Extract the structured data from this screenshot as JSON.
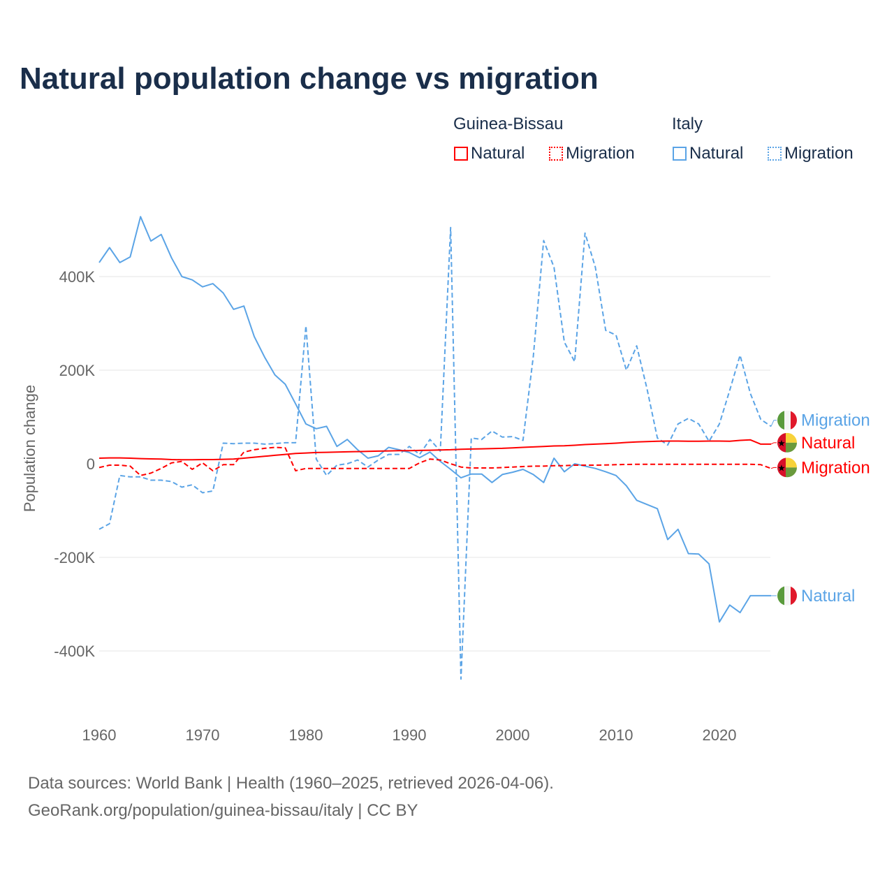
{
  "title": "Natural population change vs migration",
  "legend": {
    "groups": [
      {
        "name": "Guinea-Bissau",
        "items": [
          "Natural",
          "Migration"
        ]
      },
      {
        "name": "Italy",
        "items": [
          "Natural",
          "Migration"
        ]
      }
    ]
  },
  "colors": {
    "guinea_bissau": "#ff0000",
    "italy": "#5ba4e6"
  },
  "footer": {
    "line1": "Data sources: World Bank | Health (1960–2025, retrieved 2026-04-06).",
    "line2": "GeoRank.org/population/guinea-bissau/italy | CC BY"
  },
  "chart_data": {
    "type": "line",
    "title": "Natural population change vs migration",
    "xlabel": "",
    "ylabel": "Population change",
    "xlim": [
      1960,
      2025
    ],
    "ylim": [
      -460000,
      530000
    ],
    "x_ticks": [
      1960,
      1970,
      1980,
      1990,
      2000,
      2010,
      2020
    ],
    "y_ticks": [
      {
        "v": 400000,
        "label": "400K"
      },
      {
        "v": 200000,
        "label": "200K"
      },
      {
        "v": 0,
        "label": "0"
      },
      {
        "v": -200000,
        "label": "-200K"
      },
      {
        "v": -400000,
        "label": "-400K"
      }
    ],
    "grid": true,
    "x": [
      1960,
      1961,
      1962,
      1963,
      1964,
      1965,
      1966,
      1967,
      1968,
      1969,
      1970,
      1971,
      1972,
      1973,
      1974,
      1975,
      1976,
      1977,
      1978,
      1979,
      1980,
      1981,
      1982,
      1983,
      1984,
      1985,
      1986,
      1987,
      1988,
      1989,
      1990,
      1991,
      1992,
      1993,
      1994,
      1995,
      1996,
      1997,
      1998,
      1999,
      2000,
      2001,
      2002,
      2003,
      2004,
      2005,
      2006,
      2007,
      2008,
      2009,
      2010,
      2011,
      2012,
      2013,
      2014,
      2015,
      2016,
      2017,
      2018,
      2019,
      2020,
      2021,
      2022,
      2023,
      2024,
      2025
    ],
    "series": [
      {
        "name": "Italy Natural",
        "country": "Italy",
        "kind": "Natural",
        "dashed": false,
        "label": "Natural",
        "values": [
          430000,
          462000,
          430000,
          442000,
          528000,
          476000,
          490000,
          440000,
          400000,
          393000,
          378000,
          385000,
          365000,
          330000,
          337000,
          272000,
          228000,
          190000,
          170000,
          128000,
          85000,
          75000,
          80000,
          37000,
          52000,
          30000,
          12000,
          17000,
          35000,
          30000,
          24000,
          13000,
          25000,
          5000,
          -12000,
          -30000,
          -22000,
          -22000,
          -40000,
          -23000,
          -18000,
          -12000,
          -23000,
          -40000,
          12000,
          -17000,
          0,
          -5000,
          -10000,
          -17000,
          -25000,
          -47000,
          -78000,
          -87000,
          -96000,
          -162000,
          -140000,
          -192000,
          -193000,
          -214000,
          -338000,
          -302000,
          -318000,
          -282000,
          -282000,
          -282000
        ]
      },
      {
        "name": "Italy Migration",
        "country": "Italy",
        "kind": "Migration",
        "dashed": true,
        "label": "Migration",
        "values": [
          -140000,
          -128000,
          -25000,
          -28000,
          -28000,
          -35000,
          -35000,
          -38000,
          -50000,
          -45000,
          -62000,
          -58000,
          44000,
          43000,
          44000,
          44000,
          42000,
          43000,
          45000,
          45000,
          295000,
          10000,
          -25000,
          -3000,
          0,
          8000,
          -7000,
          8000,
          20000,
          20000,
          37000,
          20000,
          52000,
          27000,
          505000,
          -460000,
          55000,
          52000,
          70000,
          57000,
          58000,
          50000,
          230000,
          477000,
          420000,
          260000,
          218000,
          493000,
          420000,
          285000,
          275000,
          200000,
          252000,
          160000,
          55000,
          40000,
          85000,
          97000,
          85000,
          48000,
          85000,
          157000,
          232000,
          150000,
          95000,
          80000
        ]
      },
      {
        "name": "Guinea-Bissau Natural",
        "country": "Guinea-Bissau",
        "kind": "Natural",
        "dashed": false,
        "label": "Natural",
        "values": [
          12000,
          12500,
          12500,
          12000,
          11000,
          10500,
          10000,
          9000,
          8500,
          8500,
          9000,
          9000,
          9500,
          10000,
          12000,
          14000,
          16000,
          18000,
          20000,
          22000,
          23000,
          24000,
          24500,
          25000,
          25500,
          26000,
          26500,
          27000,
          27500,
          28000,
          28000,
          28500,
          29000,
          29500,
          30000,
          31000,
          31500,
          32000,
          32500,
          33000,
          34000,
          35000,
          36000,
          37000,
          38000,
          38500,
          39500,
          41000,
          42000,
          43000,
          44000,
          45500,
          46500,
          47500,
          48000,
          48500,
          48500,
          48000,
          48000,
          48500,
          48500,
          48000,
          50000,
          51000,
          42000,
          42000
        ]
      },
      {
        "name": "Guinea-Bissau Migration",
        "country": "Guinea-Bissau",
        "kind": "Migration",
        "dashed": true,
        "label": "Migration",
        "values": [
          -8000,
          -3000,
          -3000,
          -5000,
          -25000,
          -20000,
          -10000,
          2000,
          5000,
          -12000,
          2000,
          -15000,
          -2000,
          -2000,
          25000,
          30000,
          33000,
          35000,
          34000,
          -15000,
          -10000,
          -10000,
          -10000,
          -10000,
          -10000,
          -10000,
          -10000,
          -10000,
          -10000,
          -10000,
          -10000,
          2000,
          10000,
          8000,
          0,
          -7000,
          -9000,
          -9000,
          -9000,
          -8000,
          -7000,
          -6000,
          -5000,
          -5000,
          -4000,
          -4000,
          -3000,
          -3000,
          -3000,
          -2500,
          -2000,
          -1500,
          -1000,
          -1000,
          -1000,
          -1000,
          -1000,
          -1000,
          -1000,
          -1000,
          -1000,
          -1000,
          -1000,
          -1000,
          -2000,
          -10000
        ]
      }
    ],
    "end_labels": [
      {
        "series": "Italy Migration",
        "text": "Migration",
        "label_value": 93000
      },
      {
        "series": "Guinea-Bissau Natural",
        "text": "Natural",
        "label_value": 45000
      },
      {
        "series": "Guinea-Bissau Migration",
        "text": "Migration",
        "label_value": -8000
      },
      {
        "series": "Italy Natural",
        "text": "Natural",
        "label_value": -282000
      }
    ]
  }
}
